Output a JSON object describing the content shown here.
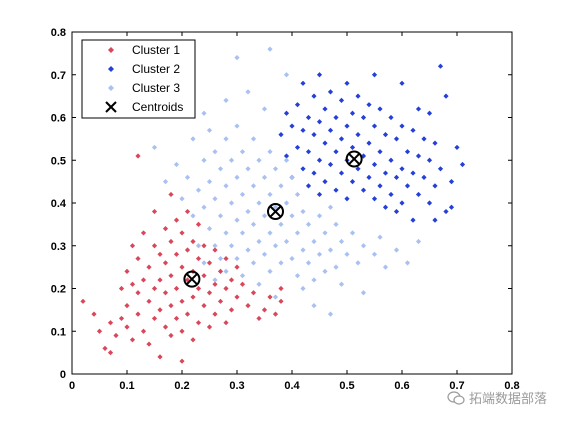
{
  "chart_data": {
    "type": "scatter",
    "xlim": [
      0,
      0.8
    ],
    "ylim": [
      0,
      0.8
    ],
    "xticks": [
      "0",
      "0.1",
      "0.2",
      "0.3",
      "0.4",
      "0.5",
      "0.6",
      "0.7",
      "0.8"
    ],
    "yticks": [
      "0",
      "0.1",
      "0.2",
      "0.3",
      "0.4",
      "0.5",
      "0.6",
      "0.7",
      "0.8"
    ],
    "legend_position": "top-left",
    "grid": false,
    "series": [
      {
        "name": "Cluster 1",
        "color": "#d9475a",
        "marker": "diamond",
        "points": [
          [
            0.02,
            0.17
          ],
          [
            0.04,
            0.14
          ],
          [
            0.05,
            0.1
          ],
          [
            0.06,
            0.06
          ],
          [
            0.07,
            0.12
          ],
          [
            0.07,
            0.05
          ],
          [
            0.08,
            0.09
          ],
          [
            0.09,
            0.2
          ],
          [
            0.09,
            0.13
          ],
          [
            0.1,
            0.24
          ],
          [
            0.1,
            0.16
          ],
          [
            0.1,
            0.11
          ],
          [
            0.11,
            0.21
          ],
          [
            0.11,
            0.3
          ],
          [
            0.11,
            0.08
          ],
          [
            0.12,
            0.27
          ],
          [
            0.12,
            0.19
          ],
          [
            0.12,
            0.14
          ],
          [
            0.12,
            0.51
          ],
          [
            0.13,
            0.33
          ],
          [
            0.13,
            0.22
          ],
          [
            0.13,
            0.1
          ],
          [
            0.14,
            0.25
          ],
          [
            0.14,
            0.17
          ],
          [
            0.14,
            0.07
          ],
          [
            0.15,
            0.38
          ],
          [
            0.15,
            0.3
          ],
          [
            0.15,
            0.2
          ],
          [
            0.15,
            0.13
          ],
          [
            0.16,
            0.28
          ],
          [
            0.16,
            0.22
          ],
          [
            0.16,
            0.15
          ],
          [
            0.16,
            0.04
          ],
          [
            0.17,
            0.34
          ],
          [
            0.17,
            0.26
          ],
          [
            0.17,
            0.19
          ],
          [
            0.17,
            0.11
          ],
          [
            0.18,
            0.42
          ],
          [
            0.18,
            0.31
          ],
          [
            0.18,
            0.23
          ],
          [
            0.18,
            0.16
          ],
          [
            0.18,
            0.09
          ],
          [
            0.19,
            0.36
          ],
          [
            0.19,
            0.28
          ],
          [
            0.19,
            0.2
          ],
          [
            0.19,
            0.13
          ],
          [
            0.2,
            0.33
          ],
          [
            0.2,
            0.25
          ],
          [
            0.2,
            0.17
          ],
          [
            0.2,
            0.1
          ],
          [
            0.2,
            0.03
          ],
          [
            0.21,
            0.38
          ],
          [
            0.21,
            0.29
          ],
          [
            0.21,
            0.22
          ],
          [
            0.21,
            0.14
          ],
          [
            0.22,
            0.31
          ],
          [
            0.22,
            0.24
          ],
          [
            0.22,
            0.18
          ],
          [
            0.22,
            0.08
          ],
          [
            0.23,
            0.35
          ],
          [
            0.23,
            0.27
          ],
          [
            0.23,
            0.2
          ],
          [
            0.23,
            0.12
          ],
          [
            0.24,
            0.3
          ],
          [
            0.24,
            0.23
          ],
          [
            0.24,
            0.16
          ],
          [
            0.25,
            0.26
          ],
          [
            0.25,
            0.19
          ],
          [
            0.25,
            0.11
          ],
          [
            0.26,
            0.29
          ],
          [
            0.26,
            0.21
          ],
          [
            0.26,
            0.14
          ],
          [
            0.27,
            0.24
          ],
          [
            0.27,
            0.17
          ],
          [
            0.28,
            0.27
          ],
          [
            0.28,
            0.2
          ],
          [
            0.28,
            0.12
          ],
          [
            0.29,
            0.22
          ],
          [
            0.29,
            0.15
          ],
          [
            0.3,
            0.25
          ],
          [
            0.3,
            0.18
          ],
          [
            0.31,
            0.21
          ],
          [
            0.32,
            0.16
          ],
          [
            0.33,
            0.19
          ],
          [
            0.34,
            0.13
          ],
          [
            0.35,
            0.15
          ],
          [
            0.36,
            0.18
          ],
          [
            0.37,
            0.14
          ],
          [
            0.38,
            0.17
          ],
          [
            0.38,
            0.2
          ]
        ]
      },
      {
        "name": "Cluster 2",
        "color": "#2440d8",
        "marker": "diamond",
        "points": [
          [
            0.38,
            0.56
          ],
          [
            0.39,
            0.61
          ],
          [
            0.39,
            0.51
          ],
          [
            0.4,
            0.58
          ],
          [
            0.4,
            0.46
          ],
          [
            0.41,
            0.63
          ],
          [
            0.41,
            0.53
          ],
          [
            0.42,
            0.68
          ],
          [
            0.42,
            0.57
          ],
          [
            0.42,
            0.48
          ],
          [
            0.43,
            0.6
          ],
          [
            0.43,
            0.52
          ],
          [
            0.43,
            0.44
          ],
          [
            0.44,
            0.65
          ],
          [
            0.44,
            0.56
          ],
          [
            0.44,
            0.47
          ],
          [
            0.45,
            0.7
          ],
          [
            0.45,
            0.59
          ],
          [
            0.45,
            0.5
          ],
          [
            0.45,
            0.42
          ],
          [
            0.46,
            0.62
          ],
          [
            0.46,
            0.54
          ],
          [
            0.46,
            0.45
          ],
          [
            0.47,
            0.66
          ],
          [
            0.47,
            0.57
          ],
          [
            0.47,
            0.49
          ],
          [
            0.48,
            0.6
          ],
          [
            0.48,
            0.52
          ],
          [
            0.48,
            0.43
          ],
          [
            0.49,
            0.64
          ],
          [
            0.49,
            0.55
          ],
          [
            0.49,
            0.47
          ],
          [
            0.5,
            0.68
          ],
          [
            0.5,
            0.58
          ],
          [
            0.5,
            0.5
          ],
          [
            0.5,
            0.41
          ],
          [
            0.51,
            0.61
          ],
          [
            0.51,
            0.53
          ],
          [
            0.51,
            0.45
          ],
          [
            0.52,
            0.65
          ],
          [
            0.52,
            0.56
          ],
          [
            0.52,
            0.48
          ],
          [
            0.53,
            0.6
          ],
          [
            0.53,
            0.51
          ],
          [
            0.53,
            0.43
          ],
          [
            0.54,
            0.63
          ],
          [
            0.54,
            0.54
          ],
          [
            0.54,
            0.46
          ],
          [
            0.55,
            0.58
          ],
          [
            0.55,
            0.49
          ],
          [
            0.55,
            0.41
          ],
          [
            0.56,
            0.62
          ],
          [
            0.56,
            0.52
          ],
          [
            0.56,
            0.44
          ],
          [
            0.57,
            0.56
          ],
          [
            0.57,
            0.47
          ],
          [
            0.57,
            0.39
          ],
          [
            0.58,
            0.6
          ],
          [
            0.58,
            0.5
          ],
          [
            0.58,
            0.42
          ],
          [
            0.59,
            0.55
          ],
          [
            0.59,
            0.46
          ],
          [
            0.6,
            0.58
          ],
          [
            0.6,
            0.48
          ],
          [
            0.6,
            0.4
          ],
          [
            0.61,
            0.52
          ],
          [
            0.61,
            0.44
          ],
          [
            0.62,
            0.57
          ],
          [
            0.62,
            0.47
          ],
          [
            0.63,
            0.62
          ],
          [
            0.63,
            0.51
          ],
          [
            0.63,
            0.42
          ],
          [
            0.64,
            0.55
          ],
          [
            0.64,
            0.46
          ],
          [
            0.65,
            0.5
          ],
          [
            0.65,
            0.4
          ],
          [
            0.66,
            0.54
          ],
          [
            0.66,
            0.44
          ],
          [
            0.67,
            0.72
          ],
          [
            0.67,
            0.48
          ],
          [
            0.68,
            0.65
          ],
          [
            0.68,
            0.38
          ],
          [
            0.69,
            0.45
          ],
          [
            0.7,
            0.53
          ],
          [
            0.71,
            0.49
          ],
          [
            0.66,
            0.36
          ],
          [
            0.59,
            0.38
          ],
          [
            0.62,
            0.36
          ],
          [
            0.55,
            0.7
          ],
          [
            0.6,
            0.68
          ],
          [
            0.65,
            0.61
          ],
          [
            0.69,
            0.39
          ]
        ]
      },
      {
        "name": "Cluster 3",
        "color": "#a9c1f1",
        "marker": "diamond",
        "points": [
          [
            0.15,
            0.53
          ],
          [
            0.17,
            0.45
          ],
          [
            0.19,
            0.49
          ],
          [
            0.2,
            0.41
          ],
          [
            0.21,
            0.46
          ],
          [
            0.22,
            0.37
          ],
          [
            0.22,
            0.55
          ],
          [
            0.23,
            0.43
          ],
          [
            0.23,
            0.3
          ],
          [
            0.24,
            0.5
          ],
          [
            0.24,
            0.39
          ],
          [
            0.24,
            0.26
          ],
          [
            0.25,
            0.57
          ],
          [
            0.25,
            0.45
          ],
          [
            0.25,
            0.34
          ],
          [
            0.26,
            0.52
          ],
          [
            0.26,
            0.41
          ],
          [
            0.26,
            0.3
          ],
          [
            0.26,
            0.22
          ],
          [
            0.27,
            0.48
          ],
          [
            0.27,
            0.37
          ],
          [
            0.27,
            0.27
          ],
          [
            0.28,
            0.55
          ],
          [
            0.28,
            0.44
          ],
          [
            0.28,
            0.33
          ],
          [
            0.28,
            0.24
          ],
          [
            0.29,
            0.5
          ],
          [
            0.29,
            0.4
          ],
          [
            0.29,
            0.3
          ],
          [
            0.3,
            0.58
          ],
          [
            0.3,
            0.46
          ],
          [
            0.3,
            0.36
          ],
          [
            0.3,
            0.27
          ],
          [
            0.31,
            0.52
          ],
          [
            0.31,
            0.42
          ],
          [
            0.31,
            0.33
          ],
          [
            0.31,
            0.23
          ],
          [
            0.32,
            0.48
          ],
          [
            0.32,
            0.38
          ],
          [
            0.32,
            0.29
          ],
          [
            0.33,
            0.55
          ],
          [
            0.33,
            0.44
          ],
          [
            0.33,
            0.35
          ],
          [
            0.33,
            0.26
          ],
          [
            0.34,
            0.5
          ],
          [
            0.34,
            0.4
          ],
          [
            0.34,
            0.31
          ],
          [
            0.34,
            0.21
          ],
          [
            0.35,
            0.46
          ],
          [
            0.35,
            0.37
          ],
          [
            0.35,
            0.28
          ],
          [
            0.36,
            0.52
          ],
          [
            0.36,
            0.42
          ],
          [
            0.36,
            0.33
          ],
          [
            0.36,
            0.24
          ],
          [
            0.37,
            0.48
          ],
          [
            0.37,
            0.39
          ],
          [
            0.37,
            0.3
          ],
          [
            0.38,
            0.44
          ],
          [
            0.38,
            0.35
          ],
          [
            0.38,
            0.26
          ],
          [
            0.39,
            0.5
          ],
          [
            0.39,
            0.4
          ],
          [
            0.39,
            0.31
          ],
          [
            0.4,
            0.46
          ],
          [
            0.4,
            0.37
          ],
          [
            0.4,
            0.27
          ],
          [
            0.41,
            0.42
          ],
          [
            0.41,
            0.33
          ],
          [
            0.41,
            0.23
          ],
          [
            0.42,
            0.38
          ],
          [
            0.42,
            0.29
          ],
          [
            0.43,
            0.35
          ],
          [
            0.43,
            0.26
          ],
          [
            0.44,
            0.31
          ],
          [
            0.44,
            0.22
          ],
          [
            0.45,
            0.37
          ],
          [
            0.45,
            0.28
          ],
          [
            0.46,
            0.33
          ],
          [
            0.46,
            0.24
          ],
          [
            0.47,
            0.39
          ],
          [
            0.47,
            0.29
          ],
          [
            0.48,
            0.35
          ],
          [
            0.48,
            0.25
          ],
          [
            0.49,
            0.31
          ],
          [
            0.5,
            0.28
          ],
          [
            0.51,
            0.33
          ],
          [
            0.52,
            0.26
          ],
          [
            0.53,
            0.3
          ],
          [
            0.55,
            0.28
          ],
          [
            0.56,
            0.32
          ],
          [
            0.57,
            0.25
          ],
          [
            0.59,
            0.29
          ],
          [
            0.61,
            0.26
          ],
          [
            0.63,
            0.31
          ],
          [
            0.3,
            0.74
          ],
          [
            0.32,
            0.66
          ],
          [
            0.36,
            0.76
          ],
          [
            0.39,
            0.7
          ],
          [
            0.24,
            0.61
          ],
          [
            0.28,
            0.64
          ],
          [
            0.35,
            0.62
          ],
          [
            0.42,
            0.2
          ],
          [
            0.37,
            0.18
          ],
          [
            0.44,
            0.16
          ],
          [
            0.49,
            0.21
          ],
          [
            0.53,
            0.19
          ],
          [
            0.47,
            0.14
          ]
        ]
      }
    ],
    "centroids": {
      "name": "Centroids",
      "marker": "circled-x",
      "points": [
        [
          0.218,
          0.222
        ],
        [
          0.37,
          0.38
        ],
        [
          0.513,
          0.503
        ]
      ]
    }
  },
  "legend": {
    "items": [
      {
        "label": "Cluster 1",
        "color": "#d9475a",
        "marker": "diamond"
      },
      {
        "label": "Cluster 2",
        "color": "#2440d8",
        "marker": "diamond"
      },
      {
        "label": "Cluster 3",
        "color": "#a9c1f1",
        "marker": "diamond"
      },
      {
        "label": "Centroids",
        "color": "#000000",
        "marker": "x"
      }
    ]
  },
  "watermark": {
    "icon": "wechat-icon",
    "text": "拓端数据部落"
  }
}
